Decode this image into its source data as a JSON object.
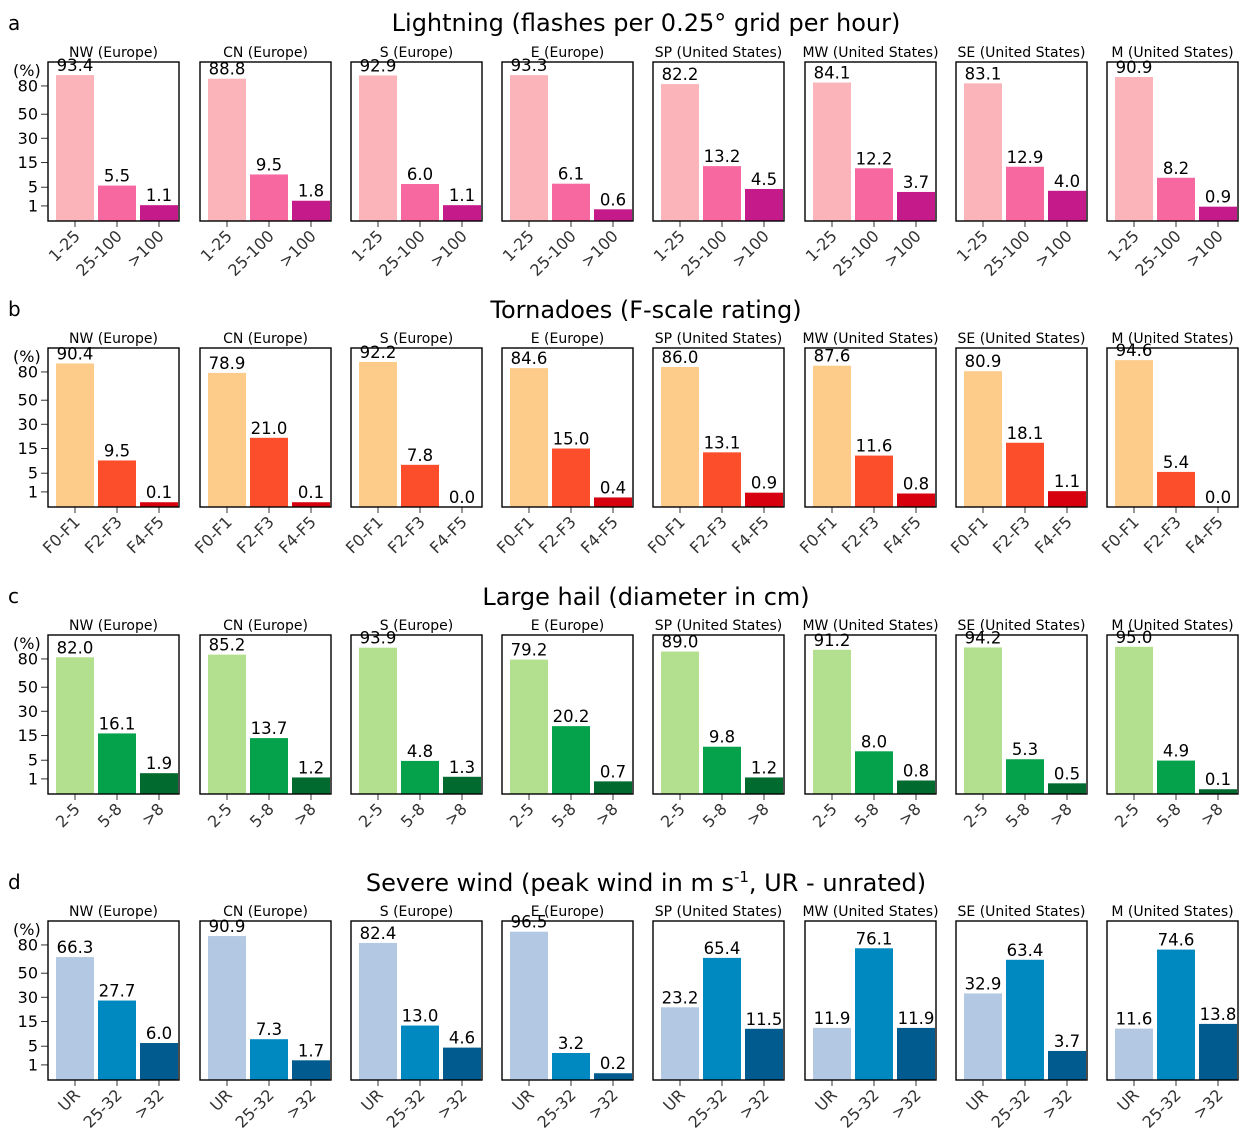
{
  "chart_data": [
    {
      "type": "bar",
      "panel": "a",
      "title": "Lightning (flashes per 0.25° grid per hour)",
      "y_unit_label": "(%)",
      "y_ticks": [
        "1",
        "5",
        "15",
        "30",
        "50",
        "80"
      ],
      "categories": [
        "1-25",
        "25-100",
        ">100"
      ],
      "colors": [
        "#fbb4b9",
        "#f768a1",
        "#c51b8a"
      ],
      "regions": [
        {
          "name": "NW (Europe)",
          "values": [
            93.4,
            5.5,
            1.1
          ],
          "labels": [
            "93.4",
            "5.5",
            "1.1"
          ]
        },
        {
          "name": "CN (Europe)",
          "values": [
            88.8,
            9.5,
            1.8
          ],
          "labels": [
            "88.8",
            "9.5",
            "1.8"
          ]
        },
        {
          "name": "S (Europe)",
          "values": [
            92.9,
            6.0,
            1.1
          ],
          "labels": [
            "92.9",
            "6.0",
            "1.1"
          ]
        },
        {
          "name": "E (Europe)",
          "values": [
            93.3,
            6.1,
            0.6
          ],
          "labels": [
            "93.3",
            "6.1",
            "0.6"
          ]
        },
        {
          "name": "SP (United States)",
          "values": [
            82.2,
            13.2,
            4.5
          ],
          "labels": [
            "82.2",
            "13.2",
            "4.5"
          ]
        },
        {
          "name": "MW (United States)",
          "values": [
            84.1,
            12.2,
            3.7
          ],
          "labels": [
            "84.1",
            "12.2",
            "3.7"
          ]
        },
        {
          "name": "SE (United States)",
          "values": [
            83.1,
            12.9,
            4.0
          ],
          "labels": [
            "83.1",
            "12.9",
            "4.0"
          ]
        },
        {
          "name": "M (United States)",
          "values": [
            90.9,
            8.2,
            0.9
          ],
          "labels": [
            "90.9",
            "8.2",
            "0.9"
          ]
        }
      ]
    },
    {
      "type": "bar",
      "panel": "b",
      "title": "Tornadoes (F-scale rating)",
      "y_unit_label": "(%)",
      "y_ticks": [
        "1",
        "5",
        "15",
        "30",
        "50",
        "80"
      ],
      "categories": [
        "F0-F1",
        "F2-F3",
        "F4-F5"
      ],
      "colors": [
        "#fdcc8a",
        "#fc4e2a",
        "#d7000f"
      ],
      "regions": [
        {
          "name": "NW (Europe)",
          "values": [
            90.4,
            9.5,
            0.1
          ],
          "labels": [
            "90.4",
            "9.5",
            "0.1"
          ]
        },
        {
          "name": "CN (Europe)",
          "values": [
            78.9,
            21.0,
            0.1
          ],
          "labels": [
            "78.9",
            "21.0",
            "0.1"
          ]
        },
        {
          "name": "S (Europe)",
          "values": [
            92.2,
            7.8,
            0.0
          ],
          "labels": [
            "92.2",
            "7.8",
            "0.0"
          ]
        },
        {
          "name": "E (Europe)",
          "values": [
            84.6,
            15.0,
            0.4
          ],
          "labels": [
            "84.6",
            "15.0",
            "0.4"
          ]
        },
        {
          "name": "SP (United States)",
          "values": [
            86.0,
            13.1,
            0.9
          ],
          "labels": [
            "86.0",
            "13.1",
            "0.9"
          ]
        },
        {
          "name": "MW (United States)",
          "values": [
            87.6,
            11.6,
            0.8
          ],
          "labels": [
            "87.6",
            "11.6",
            "0.8"
          ]
        },
        {
          "name": "SE (United States)",
          "values": [
            80.9,
            18.1,
            1.1
          ],
          "labels": [
            "80.9",
            "18.1",
            "1.1"
          ]
        },
        {
          "name": "M (United States)",
          "values": [
            94.6,
            5.4,
            0.0
          ],
          "labels": [
            "94.6",
            "5.4",
            "0.0"
          ]
        }
      ]
    },
    {
      "type": "bar",
      "panel": "c",
      "title": "Large hail (diameter in cm)",
      "y_unit_label": "(%)",
      "y_ticks": [
        "1",
        "5",
        "15",
        "30",
        "50",
        "80"
      ],
      "categories": [
        "2-5",
        "5-8",
        ">8"
      ],
      "colors": [
        "#b2e08e",
        "#06a24b",
        "#006a2f"
      ],
      "regions": [
        {
          "name": "NW (Europe)",
          "values": [
            82.0,
            16.1,
            1.9
          ],
          "labels": [
            "82.0",
            "16.1",
            "1.9"
          ]
        },
        {
          "name": "CN (Europe)",
          "values": [
            85.2,
            13.7,
            1.2
          ],
          "labels": [
            "85.2",
            "13.7",
            "1.2"
          ]
        },
        {
          "name": "S (Europe)",
          "values": [
            93.9,
            4.8,
            1.3
          ],
          "labels": [
            "93.9",
            "4.8",
            "1.3"
          ]
        },
        {
          "name": "E (Europe)",
          "values": [
            79.2,
            20.2,
            0.7
          ],
          "labels": [
            "79.2",
            "20.2",
            "0.7"
          ]
        },
        {
          "name": "SP (United States)",
          "values": [
            89.0,
            9.8,
            1.2
          ],
          "labels": [
            "89.0",
            "9.8",
            "1.2"
          ]
        },
        {
          "name": "MW (United States)",
          "values": [
            91.2,
            8.0,
            0.8
          ],
          "labels": [
            "91.2",
            "8.0",
            "0.8"
          ]
        },
        {
          "name": "SE (United States)",
          "values": [
            94.2,
            5.3,
            0.5
          ],
          "labels": [
            "94.2",
            "5.3",
            "0.5"
          ]
        },
        {
          "name": "M (United States)",
          "values": [
            95.0,
            4.9,
            0.1
          ],
          "labels": [
            "95.0",
            "4.9",
            "0.1"
          ]
        }
      ]
    },
    {
      "type": "bar",
      "panel": "d",
      "title": "Severe wind (peak wind in m s⁻¹, UR - unrated)",
      "title_parts": {
        "pre": "Severe wind (peak wind in m s",
        "sup": "-1",
        "post": ", UR - unrated)"
      },
      "y_unit_label": "(%)",
      "y_ticks": [
        "1",
        "5",
        "15",
        "30",
        "50",
        "80"
      ],
      "categories": [
        "UR",
        "25-32",
        ">32"
      ],
      "colors": [
        "#b3c9e3",
        "#0089c1",
        "#025b8f"
      ],
      "regions": [
        {
          "name": "NW (Europe)",
          "values": [
            66.3,
            27.7,
            6.0
          ],
          "labels": [
            "66.3",
            "27.7",
            "6.0"
          ]
        },
        {
          "name": "CN (Europe)",
          "values": [
            90.9,
            7.3,
            1.7
          ],
          "labels": [
            "90.9",
            "7.3",
            "1.7"
          ]
        },
        {
          "name": "S (Europe)",
          "values": [
            82.4,
            13.0,
            4.6
          ],
          "labels": [
            "82.4",
            "13.0",
            "4.6"
          ]
        },
        {
          "name": "E (Europe)",
          "values": [
            96.5,
            3.2,
            0.2
          ],
          "labels": [
            "96.5",
            "3.2",
            "0.2"
          ]
        },
        {
          "name": "SP (United States)",
          "values": [
            23.2,
            65.4,
            11.5
          ],
          "labels": [
            "23.2",
            "65.4",
            "11.5"
          ]
        },
        {
          "name": "MW (United States)",
          "values": [
            11.9,
            76.1,
            11.9
          ],
          "labels": [
            "11.9",
            "76.1",
            "11.9"
          ]
        },
        {
          "name": "SE (United States)",
          "values": [
            32.9,
            63.4,
            3.7
          ],
          "labels": [
            "32.9",
            "63.4",
            "3.7"
          ]
        },
        {
          "name": "M (United States)",
          "values": [
            11.6,
            74.6,
            13.8
          ],
          "labels": [
            "11.6",
            "74.6",
            "13.8"
          ]
        }
      ]
    }
  ]
}
